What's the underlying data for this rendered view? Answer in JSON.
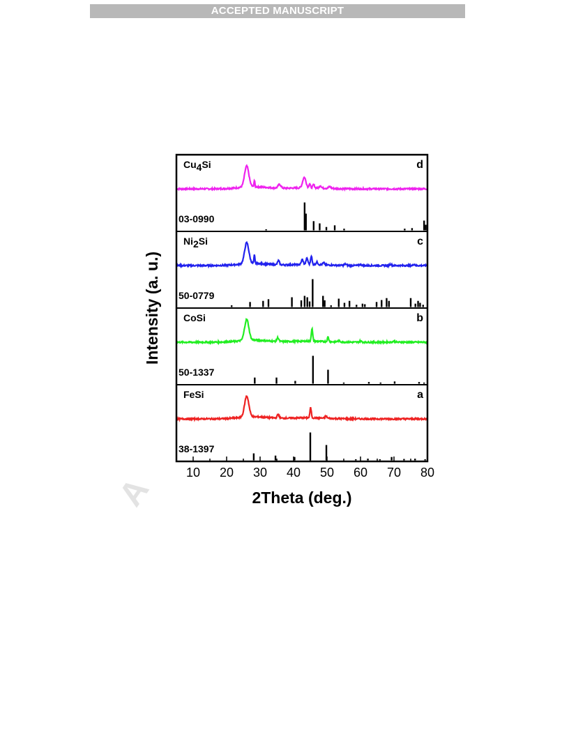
{
  "header": {
    "banner_text": "ACCEPTED MANUSCRIPT"
  },
  "watermark": {
    "text": "A"
  },
  "chart_data": {
    "type": "line",
    "xlabel": "2Theta (deg.)",
    "ylabel": "Intensity (a. u.)",
    "xlim": [
      5,
      80
    ],
    "x_ticks": [
      10,
      20,
      30,
      40,
      50,
      60,
      70,
      80
    ],
    "grid": false,
    "panels": [
      {
        "letter": "d",
        "sample_name": "Cu",
        "sample_subscript": "4",
        "sample_suffix": "Si",
        "color": "#ee22ee",
        "pattern_peaks": [
          [
            26,
            1.0,
            0.9
          ],
          [
            28.3,
            0.3,
            0.2
          ],
          [
            35.8,
            0.18,
            0.6
          ],
          [
            43.2,
            0.5,
            0.7
          ],
          [
            44.8,
            0.2,
            0.3
          ],
          [
            46.0,
            0.16,
            0.35
          ],
          [
            48.0,
            0.12,
            0.4
          ],
          [
            50.8,
            0.08,
            0.5
          ]
        ],
        "reference": {
          "code": "03-0990",
          "lines": [
            [
              31.8,
              0.04
            ],
            [
              43.3,
              1.0
            ],
            [
              43.7,
              0.6
            ],
            [
              46.0,
              0.33
            ],
            [
              47.8,
              0.25
            ],
            [
              49.8,
              0.12
            ],
            [
              52.3,
              0.18
            ],
            [
              55.1,
              0.06
            ],
            [
              73.2,
              0.06
            ],
            [
              75.4,
              0.08
            ],
            [
              79.0,
              0.35
            ],
            [
              79.5,
              0.2
            ]
          ]
        }
      },
      {
        "letter": "c",
        "sample_name": "Ni",
        "sample_subscript": "2",
        "sample_suffix": "Si",
        "color": "#2222ee",
        "pattern_peaks": [
          [
            26,
            1.0,
            0.9
          ],
          [
            28.3,
            0.4,
            0.2
          ],
          [
            35.5,
            0.2,
            0.4
          ],
          [
            42.6,
            0.24,
            0.4
          ],
          [
            44.0,
            0.3,
            0.4
          ],
          [
            45.3,
            0.42,
            0.3
          ],
          [
            47.0,
            0.12,
            0.4
          ],
          [
            49.0,
            0.1,
            0.4
          ],
          [
            55.5,
            0.06,
            0.5
          ],
          [
            60.0,
            0.05,
            0.5
          ],
          [
            69.0,
            0.06,
            0.4
          ],
          [
            76.0,
            0.07,
            0.3
          ]
        ],
        "reference": {
          "code": "50-0779",
          "lines": [
            [
              21.5,
              0.06
            ],
            [
              27.0,
              0.18
            ],
            [
              30.9,
              0.22
            ],
            [
              32.5,
              0.28
            ],
            [
              39.5,
              0.35
            ],
            [
              42.3,
              0.24
            ],
            [
              43.3,
              0.4
            ],
            [
              44.1,
              0.35
            ],
            [
              44.8,
              0.2
            ],
            [
              45.7,
              1.0
            ],
            [
              48.8,
              0.4
            ],
            [
              49.3,
              0.24
            ],
            [
              51.2,
              0.06
            ],
            [
              53.5,
              0.3
            ],
            [
              55.2,
              0.15
            ],
            [
              56.7,
              0.22
            ],
            [
              58.8,
              0.08
            ],
            [
              60.6,
              0.12
            ],
            [
              61.3,
              0.1
            ],
            [
              64.8,
              0.18
            ],
            [
              66.3,
              0.25
            ],
            [
              67.8,
              0.32
            ],
            [
              68.5,
              0.22
            ],
            [
              75.0,
              0.32
            ],
            [
              76.4,
              0.12
            ],
            [
              77.2,
              0.22
            ],
            [
              77.8,
              0.15
            ],
            [
              78.7,
              0.08
            ]
          ]
        }
      },
      {
        "letter": "b",
        "sample_name": "CoSi",
        "sample_subscript": "",
        "sample_suffix": "",
        "color": "#22ee22",
        "pattern_peaks": [
          [
            26,
            1.0,
            0.9
          ],
          [
            35.3,
            0.18,
            0.4
          ],
          [
            45.5,
            0.6,
            0.3
          ],
          [
            50.3,
            0.22,
            0.3
          ],
          [
            53.5,
            0.06,
            0.5
          ],
          [
            60.0,
            0.05,
            0.5
          ],
          [
            70.0,
            0.05,
            0.5
          ]
        ],
        "reference": {
          "code": "50-1337",
          "lines": [
            [
              28.4,
              0.22
            ],
            [
              34.9,
              0.22
            ],
            [
              40.5,
              0.1
            ],
            [
              45.8,
              1.0
            ],
            [
              50.3,
              0.5
            ],
            [
              55.0,
              0.04
            ],
            [
              62.5,
              0.06
            ],
            [
              66.0,
              0.04
            ],
            [
              70.2,
              0.08
            ],
            [
              77.5,
              0.06
            ],
            [
              79.0,
              0.04
            ]
          ]
        }
      },
      {
        "letter": "a",
        "sample_name": "FeSi",
        "sample_subscript": "",
        "sample_suffix": "",
        "color": "#ee2222",
        "pattern_peaks": [
          [
            26,
            1.0,
            0.9
          ],
          [
            35.4,
            0.18,
            0.4
          ],
          [
            45.1,
            0.48,
            0.3
          ],
          [
            49.7,
            0.1,
            0.4
          ]
        ],
        "reference": {
          "code": "38-1397",
          "lines": [
            [
              28.1,
              0.25
            ],
            [
              34.6,
              0.17
            ],
            [
              40.3,
              0.12
            ],
            [
              45.0,
              1.0
            ],
            [
              49.8,
              0.55
            ],
            [
              58.6,
              0.04
            ],
            [
              62.2,
              0.06
            ],
            [
              65.8,
              0.04
            ],
            [
              69.3,
              0.12
            ],
            [
              73.0,
              0.05
            ],
            [
              76.3,
              0.06
            ],
            [
              79.3,
              0.04
            ]
          ]
        }
      }
    ]
  }
}
